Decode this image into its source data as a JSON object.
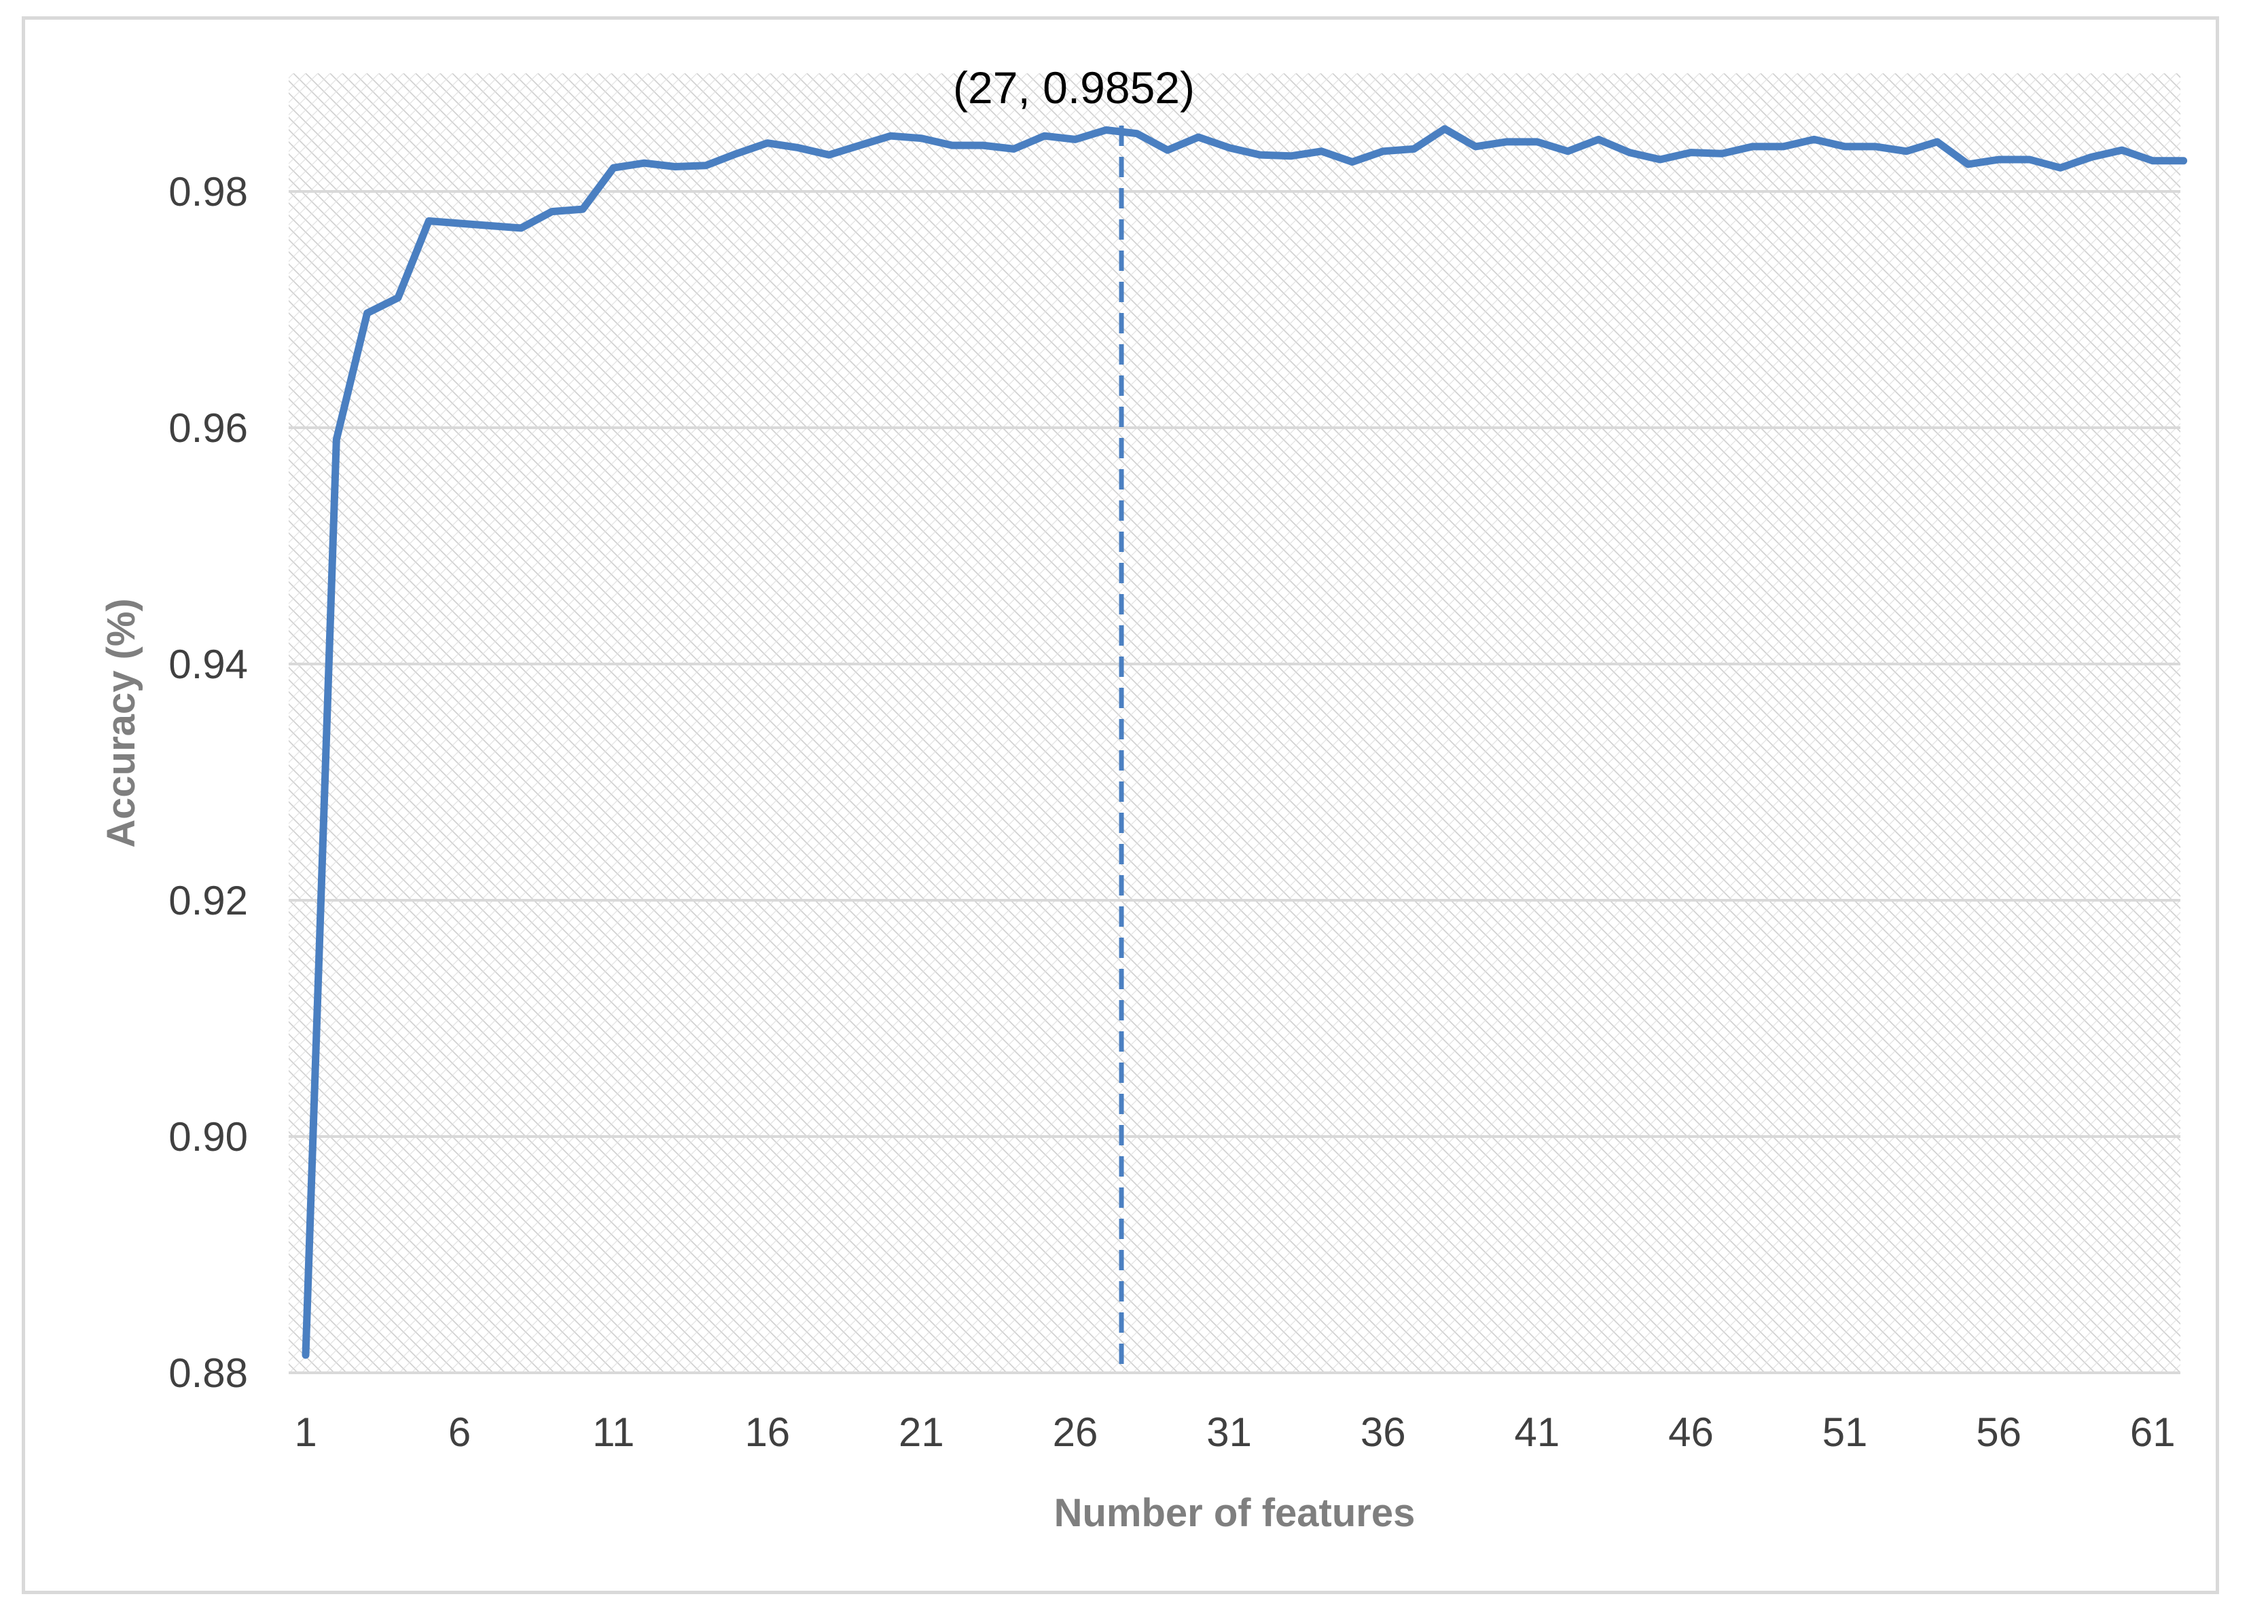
{
  "chart_data": {
    "type": "line",
    "title": "",
    "xlabel": "Number of features",
    "ylabel": "Accuracy (%)",
    "xlim": [
      1,
      62
    ],
    "ylim": [
      0.88,
      0.99
    ],
    "x_ticks": [
      1,
      6,
      11,
      16,
      21,
      26,
      31,
      36,
      41,
      46,
      51,
      56,
      61
    ],
    "y_ticks": [
      "0.88",
      "0.90",
      "0.92",
      "0.94",
      "0.96",
      "0.98"
    ],
    "grid": true,
    "legend": "none",
    "colors": {
      "line": "#4a7fc1",
      "grid": "#d9d9d9",
      "axis_text": "#404040",
      "title_text": "#7f7f7f"
    },
    "annotation": {
      "text": "(27, 0.9852)",
      "x": 27.5,
      "style": "dashed-vertical-line"
    },
    "series": [
      {
        "x": [
          1,
          2,
          3,
          4,
          5,
          6,
          7,
          8,
          9,
          10,
          11,
          12,
          13,
          14,
          15,
          16,
          17,
          18,
          19,
          20,
          21,
          22,
          23,
          24,
          25,
          26,
          27,
          28,
          29,
          30,
          31,
          32,
          33,
          34,
          35,
          36,
          37,
          38,
          39,
          40,
          41,
          42,
          43,
          44,
          45,
          46,
          47,
          48,
          49,
          50,
          51,
          52,
          53,
          54,
          55,
          56,
          57,
          58,
          59,
          60,
          61,
          62
        ],
        "values": [
          0.8815,
          0.959,
          0.9697,
          0.971,
          0.9775,
          0.9773,
          0.9771,
          0.9769,
          0.9783,
          0.9785,
          0.982,
          0.9824,
          0.9821,
          0.9822,
          0.9832,
          0.9841,
          0.9837,
          0.9831,
          0.9839,
          0.9847,
          0.9845,
          0.9839,
          0.9839,
          0.9836,
          0.9847,
          0.9844,
          0.9852,
          0.9849,
          0.9835,
          0.9846,
          0.9837,
          0.9831,
          0.983,
          0.9834,
          0.9825,
          0.9834,
          0.9836,
          0.9853,
          0.9838,
          0.9842,
          0.9842,
          0.9834,
          0.9844,
          0.9833,
          0.9827,
          0.9833,
          0.9832,
          0.9838,
          0.9838,
          0.9844,
          0.9838,
          0.9838,
          0.9834,
          0.9842,
          0.9823,
          0.9827,
          0.9827,
          0.982,
          0.9829,
          0.9835,
          0.9826,
          0.9826
        ]
      }
    ]
  }
}
